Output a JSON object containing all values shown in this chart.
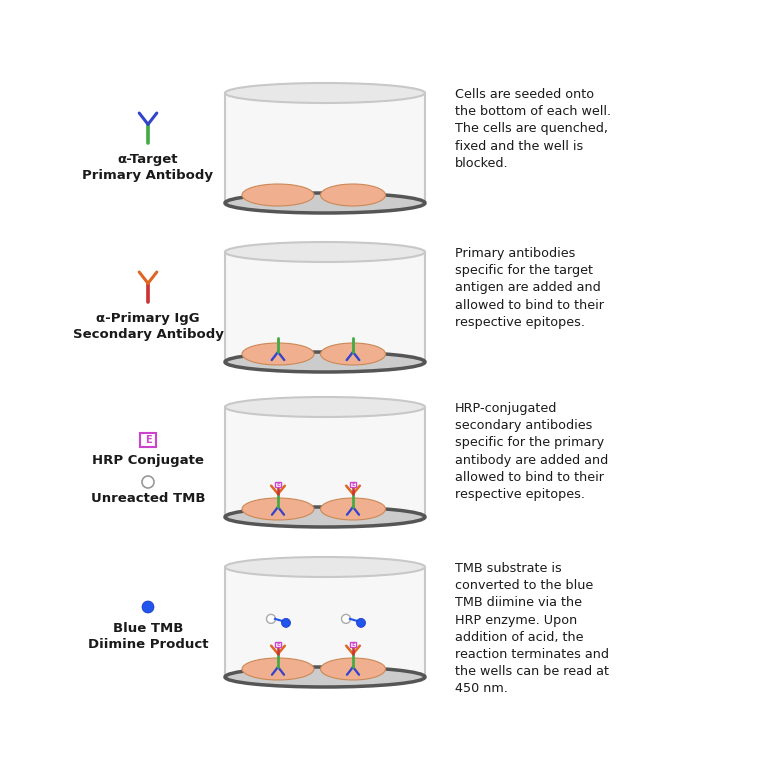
{
  "background_color": "#ffffff",
  "text_color": "#1a1a1a",
  "cell_color": "#f0b090",
  "cell_edge": "#cc8855",
  "green": "#44aa44",
  "blue_ab": "#3344cc",
  "orange_ab": "#dd6622",
  "red_ab": "#cc3333",
  "hrp_color": "#cc44cc",
  "tmb_blue": "#2255ee",
  "well_side_color": "#c8c8c8",
  "well_bottom_color": "#555555",
  "well_bg": "#f7f7f7",
  "rows": [
    {
      "legend_label": "α-Target\nPrimary Antibody",
      "icon_type": "ab_green_blue",
      "well_type": "cells_only",
      "description": "Cells are seeded onto\nthe bottom of each well.\nThe cells are quenched,\nfixed and the well is\nblocked."
    },
    {
      "legend_label": "α-Primary IgG\nSecondary Antibody",
      "icon_type": "ab_red_orange",
      "well_type": "primary_ab",
      "description": "Primary antibodies\nspecific for the target\nantigen are added and\nallowed to bind to their\nrespective epitopes."
    },
    {
      "legend_label1": "HRP Conjugate",
      "legend_label2": "Unreacted TMB",
      "icon_type": "hrp_and_tmb",
      "well_type": "hrp_conjugate",
      "description": "HRP-conjugated\nsecondary antibodies\nspecific for the primary\nantibody are added and\nallowed to bind to their\nrespective epitopes."
    },
    {
      "legend_label": "Blue TMB\nDiimine Product",
      "icon_type": "blue_dot",
      "well_type": "tmb_product",
      "description": "TMB substrate is\nconverted to the blue\nTMB diimine via the\nHRP enzyme. Upon\naddition of acid, the\nreaction terminates and\nthe wells can be read at\n450 nm."
    }
  ]
}
